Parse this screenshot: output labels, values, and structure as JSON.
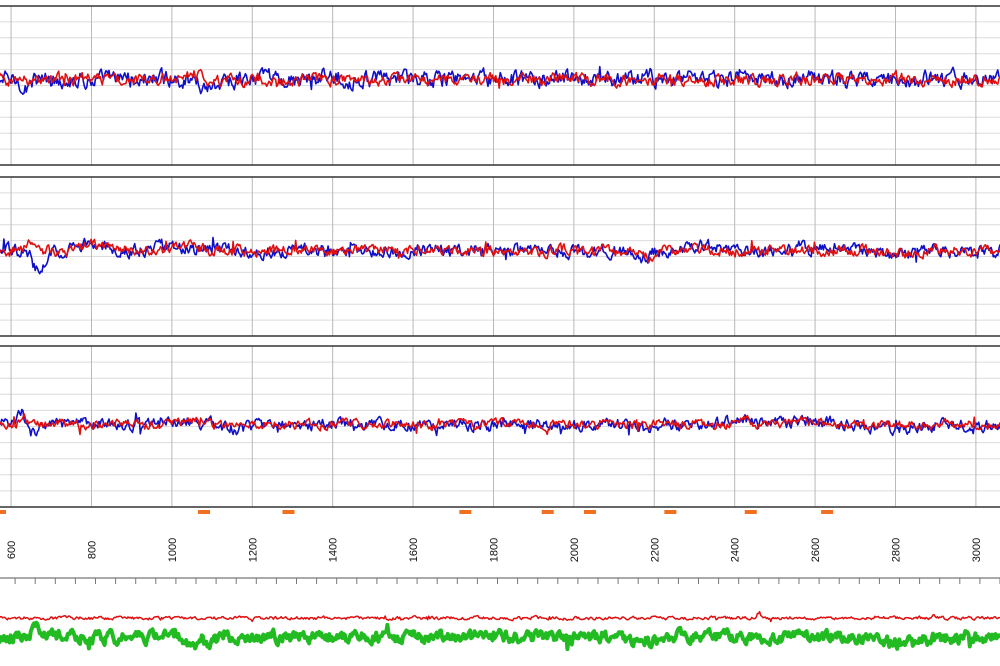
{
  "chart_data": {
    "type": "line",
    "xlim": [
      560,
      3060
    ],
    "x_ticks": [
      600,
      800,
      1000,
      1200,
      1400,
      1600,
      1800,
      2000,
      2200,
      2400,
      2600,
      2800,
      3000
    ],
    "tick_labels": [
      "600",
      "800",
      "1000",
      "1200",
      "1400",
      "1600",
      "1800",
      "2000",
      "2200",
      "2400",
      "2600",
      "2800",
      "3000"
    ],
    "grid": true,
    "legend": "none",
    "colors": {
      "blue": "#1010c8",
      "red": "#e01010",
      "green": "#22bb22",
      "markers": "#f07020",
      "frame": "#333333",
      "grid_major": "#b8b8b8",
      "grid_minor": "#dcdcdc"
    },
    "panels": [
      {
        "id": "panel-1",
        "ylim": [
          -1,
          1
        ],
        "series": [
          {
            "color": "blue",
            "base": 0.0,
            "amplitude": 0.28,
            "events": [
              [
                640,
                -0.15,
                18
              ],
              [
                1090,
                -0.2,
                30
              ],
              [
                1400,
                0.12,
                20
              ],
              [
                2180,
                0.1,
                25
              ],
              [
                2420,
                0.2,
                12
              ]
            ]
          },
          {
            "color": "red",
            "base": 0.0,
            "amplitude": 0.2,
            "events": [
              [
                1050,
                0.2,
                20
              ],
              [
                2460,
                -0.18,
                8
              ]
            ]
          }
        ]
      },
      {
        "id": "panel-2",
        "ylim": [
          -1,
          1
        ],
        "series": [
          {
            "color": "blue",
            "base": 0.0,
            "amplitude": 0.22,
            "events": [
              [
                650,
                0.2,
                8
              ],
              [
                665,
                -0.55,
                25
              ],
              [
                800,
                0.15,
                60
              ],
              [
                1000,
                0.15,
                40
              ],
              [
                2170,
                -0.25,
                25
              ],
              [
                2330,
                0.1,
                60
              ],
              [
                2650,
                0.15,
                60
              ],
              [
                2800,
                -0.15,
                50
              ],
              [
                3000,
                -0.1,
                40
              ]
            ]
          },
          {
            "color": "red",
            "base": 0.0,
            "amplitude": 0.18,
            "events": [
              [
                640,
                0.22,
                10
              ],
              [
                820,
                0.15,
                60
              ],
              [
                1050,
                0.12,
                30
              ],
              [
                2180,
                -0.2,
                20
              ],
              [
                2800,
                -0.12,
                50
              ]
            ]
          }
        ]
      },
      {
        "id": "panel-3",
        "ylim": [
          -1,
          1
        ],
        "series": [
          {
            "color": "blue",
            "base": 0.0,
            "amplitude": 0.2,
            "events": [
              [
                625,
                0.4,
                10
              ],
              [
                650,
                -0.25,
                15
              ],
              [
                1020,
                0.15,
                50
              ],
              [
                1160,
                -0.2,
                30
              ],
              [
                2180,
                -0.18,
                30
              ],
              [
                2400,
                0.12,
                40
              ],
              [
                2600,
                0.1,
                60
              ],
              [
                2800,
                -0.12,
                60
              ],
              [
                3000,
                -0.1,
                40
              ]
            ]
          },
          {
            "color": "red",
            "base": 0.0,
            "amplitude": 0.15,
            "events": [
              [
                630,
                0.25,
                12
              ],
              [
                1050,
                0.12,
                40
              ],
              [
                2420,
                0.15,
                20
              ],
              [
                2600,
                0.1,
                60
              ]
            ]
          }
        ]
      }
    ],
    "markers_x": [
      1080,
      1290,
      1730,
      1935,
      2040,
      2240,
      2440,
      2630
    ],
    "bottom_traces": [
      {
        "color": "red",
        "events": [
          [
            2460,
            0.9,
            4
          ],
          [
            2895,
            0.6,
            4
          ]
        ]
      },
      {
        "color": "green",
        "events": [
          [
            660,
            0.8,
            10
          ],
          [
            1060,
            -0.5,
            40
          ],
          [
            2180,
            -0.4,
            30
          ],
          [
            2820,
            -0.45,
            50
          ]
        ]
      }
    ]
  }
}
